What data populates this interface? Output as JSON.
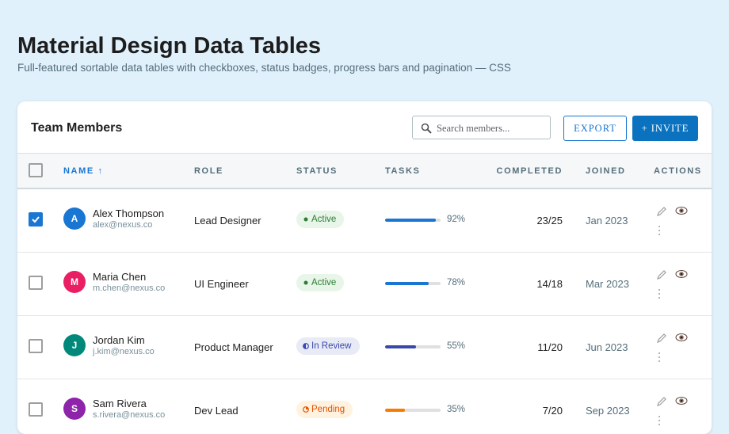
{
  "header": {
    "title": "Material Design Data Tables",
    "subtitle": "Full-featured sortable data tables with checkboxes, status badges, progress bars and pagination — CSS"
  },
  "card": {
    "title": "Team Members",
    "search_placeholder": "Search members...",
    "export_button": "EXPORT",
    "invite_button": "+ INVITE"
  },
  "table": {
    "columns": [
      "NAME ↑",
      "ROLE",
      "STATUS",
      "TASKS",
      "COMPLETED",
      "JOINED",
      "ACTIONS"
    ],
    "rows": [
      {
        "checked": true,
        "initial": "A",
        "avatar_color": "#1976d2",
        "name": "Alex Thompson",
        "email": "alex@nexus.co",
        "role": "Lead Designer",
        "status": "Active",
        "status_kind": "active",
        "progress": {
          "value": 92,
          "label": "92%"
        },
        "progress_color": "#1976d2",
        "completed": "23/25",
        "joined": "Jan 2023"
      },
      {
        "checked": false,
        "initial": "M",
        "avatar_color": "#e91e63",
        "name": "Maria Chen",
        "email": "m.chen@nexus.co",
        "role": "UI Engineer",
        "status": "Active",
        "status_kind": "active",
        "progress": {
          "value": 78,
          "label": "78%"
        },
        "progress_color": "#1976d2",
        "completed": "14/18",
        "joined": "Mar 2023"
      },
      {
        "checked": false,
        "initial": "J",
        "avatar_color": "#00897b",
        "name": "Jordan Kim",
        "email": "j.kim@nexus.co",
        "role": "Product Manager",
        "status": "In Review",
        "status_kind": "review",
        "progress": {
          "value": 55,
          "label": "55%"
        },
        "progress_color": "#3949ab",
        "completed": "11/20",
        "joined": "Jun 2023"
      },
      {
        "checked": false,
        "initial": "S",
        "avatar_color": "#8e24aa",
        "name": "Sam Rivera",
        "email": "s.rivera@nexus.co",
        "role": "Dev Lead",
        "status": "Pending",
        "status_kind": "pending",
        "progress": {
          "value": 35,
          "label": "35%"
        },
        "progress_color": "#f57c00",
        "completed": "7/20",
        "joined": "Sep 2023"
      }
    ]
  }
}
